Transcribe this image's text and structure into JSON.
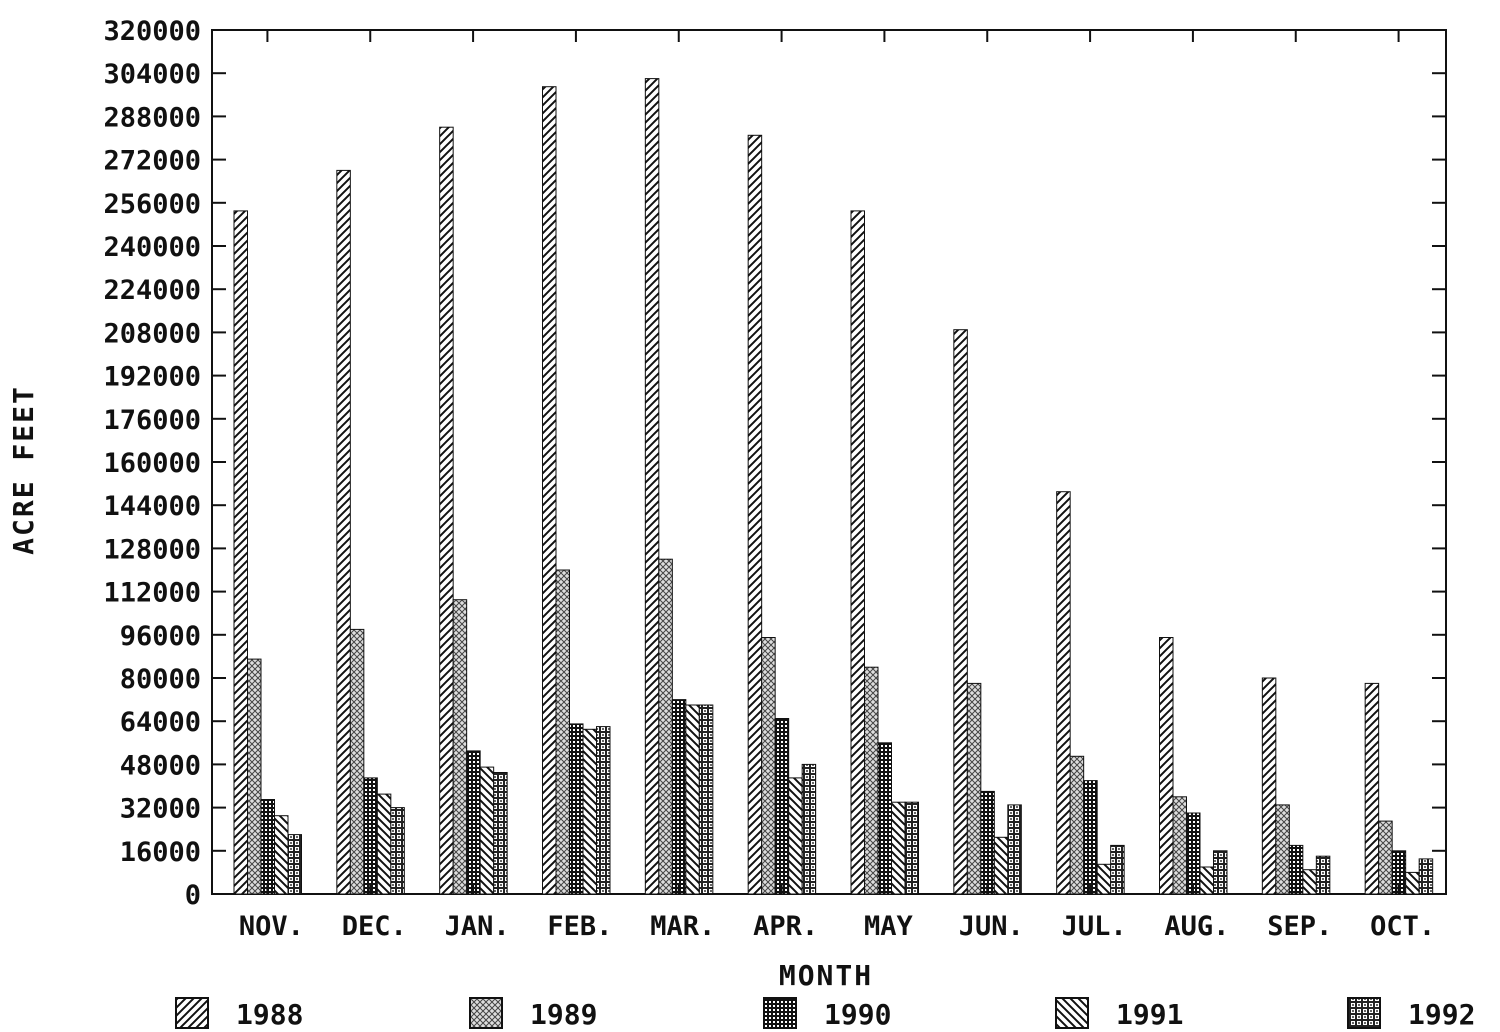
{
  "chart_data": {
    "type": "bar",
    "title": "",
    "xlabel": "MONTH",
    "ylabel": "ACRE FEET",
    "ylim": [
      0,
      320000
    ],
    "y_ticks": [
      "0",
      "16000",
      "32000",
      "48000",
      "64000",
      "80000",
      "96000",
      "112000",
      "128000",
      "144000",
      "160000",
      "176000",
      "192000",
      "208000",
      "224000",
      "240000",
      "256000",
      "272000",
      "288000",
      "304000",
      "320000"
    ],
    "categories": [
      "NOV.",
      "DEC.",
      "JAN.",
      "FEB.",
      "MAR.",
      "APR.",
      "MAY",
      "JUN.",
      "JUL.",
      "AUG.",
      "SEP.",
      "OCT."
    ],
    "legend_position": "bottom",
    "grid": false,
    "series": [
      {
        "name": "1988",
        "pattern": "diagonal-hatch",
        "values": [
          253000,
          268000,
          284000,
          299000,
          302000,
          281000,
          253000,
          209000,
          149000,
          95000,
          80000,
          78000
        ]
      },
      {
        "name": "1989",
        "pattern": "crosshatch-dots",
        "values": [
          87000,
          98000,
          109000,
          120000,
          124000,
          95000,
          84000,
          78000,
          51000,
          36000,
          33000,
          27000
        ]
      },
      {
        "name": "1990",
        "pattern": "dense-grid",
        "values": [
          35000,
          43000,
          53000,
          63000,
          72000,
          65000,
          56000,
          38000,
          42000,
          30000,
          18000,
          16000
        ]
      },
      {
        "name": "1991",
        "pattern": "back-diagonal-hatch",
        "values": [
          29000,
          37000,
          47000,
          61000,
          70000,
          43000,
          34000,
          21000,
          11000,
          10000,
          9000,
          8000
        ]
      },
      {
        "name": "1992",
        "pattern": "boxed-grid",
        "values": [
          22000,
          32000,
          45000,
          62000,
          70000,
          48000,
          34000,
          33000,
          18000,
          16000,
          14000,
          13000
        ]
      }
    ]
  }
}
